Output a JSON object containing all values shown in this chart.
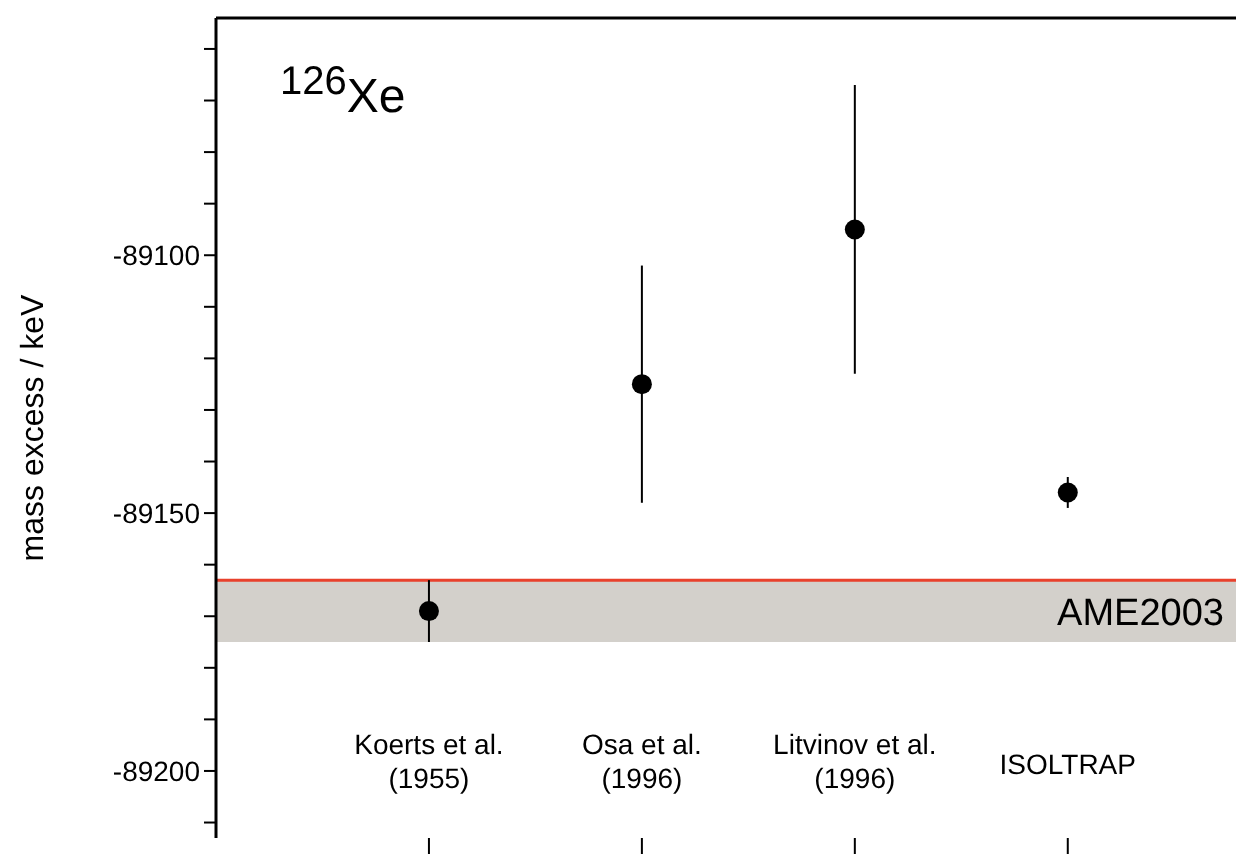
{
  "chart_data": {
    "type": "scatter",
    "annotations": [
      "$^{126}$Xe"
    ],
    "ylabel": "mass excess / keV",
    "categories": [
      "Koerts et al. (1955)",
      "Osa et al. (1996)",
      "Litvinov et al. (1996)",
      "ISOLTRAP"
    ],
    "values": [
      -89169,
      -89125,
      -89095,
      -89146
    ],
    "errors": [
      6,
      23,
      28,
      3
    ],
    "color": "#000000",
    "marker": "circle",
    "ylim": [
      -89213,
      -89054
    ],
    "yticks": [
      {
        "value": -89210,
        "label": null
      },
      -89200,
      {
        "value": -89190,
        "label": null
      },
      {
        "value": -89180,
        "label": null
      },
      {
        "value": -89170,
        "label": null
      },
      {
        "value": -89160,
        "label": null
      },
      -89150,
      {
        "value": -89140,
        "label": null
      },
      {
        "value": -89130,
        "label": null
      },
      {
        "value": -89120,
        "label": null
      },
      {
        "value": -89110,
        "label": null
      },
      -89100,
      {
        "value": -89090,
        "label": null
      },
      {
        "value": -89080,
        "label": null
      },
      {
        "value": -89070,
        "label": null
      },
      {
        "value": -89060,
        "label": null
      }
    ],
    "ref_lines": [
      {
        "axis": "y",
        "value": -89163,
        "color": "#e8412c"
      }
    ],
    "bands": [
      {
        "axis": "y",
        "from": -89175,
        "to": -89163,
        "label": "AME2003",
        "color": "#d3d0cb"
      }
    ],
    "grid": false,
    "legend": false
  }
}
